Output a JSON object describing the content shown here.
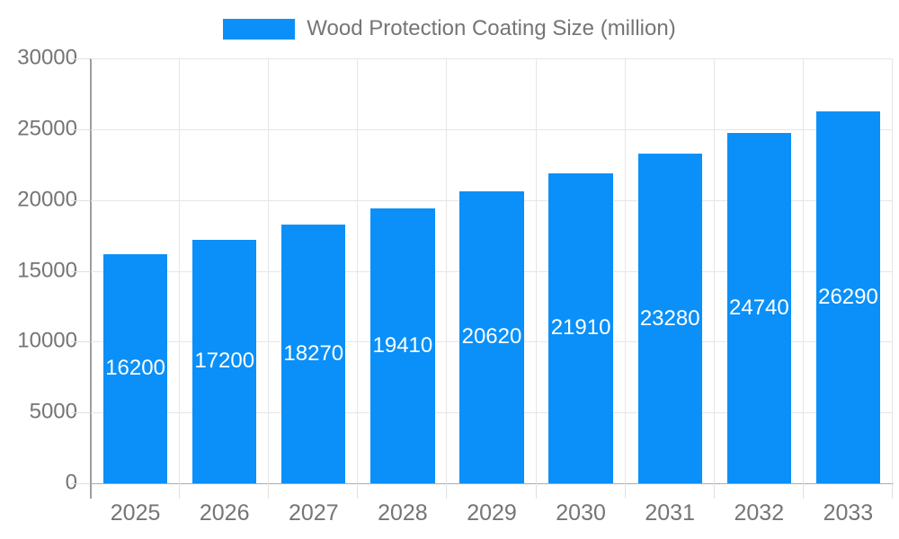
{
  "legend": {
    "label": "Wood Protection Coating Size (million)",
    "position": "top"
  },
  "chart_data": {
    "type": "bar",
    "title": "Wood Protection Coating Size (million)",
    "categories": [
      "2025",
      "2026",
      "2027",
      "2028",
      "2029",
      "2030",
      "2031",
      "2032",
      "2033"
    ],
    "series": [
      {
        "name": "Wood Protection Coating Size (million)",
        "values": [
          16200,
          17200,
          18270,
          19410,
          20620,
          21910,
          23280,
          24740,
          26290
        ]
      }
    ],
    "value_labels": [
      "16200",
      "17200",
      "18270",
      "19410",
      "20620",
      "21910",
      "23280",
      "24740",
      "26290"
    ],
    "xlabel": "",
    "ylabel": "",
    "ylim": [
      0,
      30000
    ],
    "y_ticks": [
      0,
      5000,
      10000,
      15000,
      20000,
      25000,
      30000
    ],
    "y_tick_labels": [
      "0",
      "5000",
      "10000",
      "15000",
      "20000",
      "25000",
      "30000"
    ],
    "grid": "horizontal-and-vertical",
    "legend_position": "top-center",
    "colors": {
      "bar": "#0a90f8",
      "value_label_text": "#ffffff",
      "axis_text": "#757575",
      "gridline": "#e6e6e6",
      "y_axis_line": "#9e9e9e",
      "x_axis_line": "#ababab",
      "tick": "#e0e0e0",
      "background": "#ffffff"
    }
  }
}
